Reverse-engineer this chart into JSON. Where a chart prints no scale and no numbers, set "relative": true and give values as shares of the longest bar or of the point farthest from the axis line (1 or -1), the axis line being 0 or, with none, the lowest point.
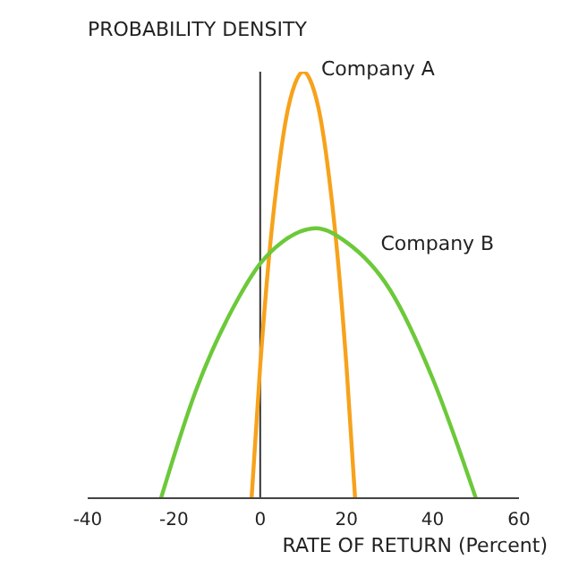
{
  "chart_data": {
    "type": "line",
    "relative": true,
    "ylabel": "PROBABILITY DENSITY",
    "xlabel": "RATE OF RETURN (Percent)",
    "xlim": [
      -40,
      60
    ],
    "xticks": [
      -40,
      -20,
      0,
      20,
      40,
      60
    ],
    "marker": "none",
    "line_style": "solid",
    "ref_lines": [
      {
        "axis": "x",
        "value": 0,
        "color": "#333333"
      }
    ],
    "series": [
      {
        "name": "Company A",
        "color": "#f7a21b",
        "x": [
          -2,
          0,
          2,
          4,
          6,
          8,
          10,
          12,
          14,
          16,
          18,
          20,
          22
        ],
        "values": [
          0,
          0.31,
          0.56,
          0.75,
          0.89,
          0.97,
          1,
          0.97,
          0.89,
          0.75,
          0.56,
          0.31,
          0
        ]
      },
      {
        "name": "Company B",
        "color": "#6cc93a",
        "x": [
          -23,
          -15,
          -5,
          0,
          5,
          13,
          20,
          30,
          40,
          50
        ],
        "values": [
          0,
          0.25,
          0.47,
          0.55,
          0.6,
          0.633,
          0.6,
          0.49,
          0.28,
          0
        ]
      }
    ]
  }
}
